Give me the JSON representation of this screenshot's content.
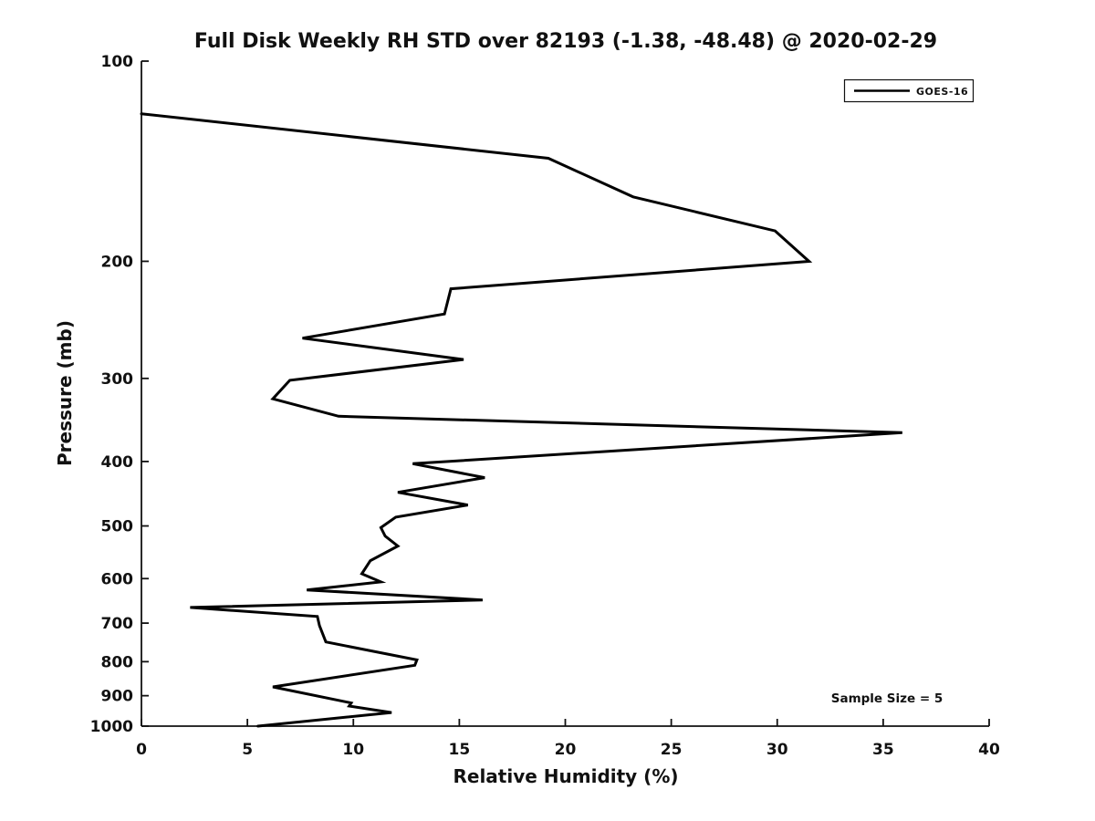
{
  "chart_data": {
    "type": "line",
    "title": "Full Disk Weekly RH STD over 82193 (-1.38, -48.48) @ 2020-02-29",
    "xlabel": "Relative Humidity (%)",
    "ylabel": "Pressure (mb)",
    "xlim": [
      0,
      40
    ],
    "ylim": [
      100,
      1000
    ],
    "yscale": "log",
    "y_axis_inverted": true,
    "grid": false,
    "xticks": [
      0,
      5,
      10,
      15,
      20,
      25,
      30,
      35,
      40
    ],
    "yticks": [
      100,
      200,
      300,
      400,
      500,
      600,
      700,
      800,
      900,
      1000
    ],
    "legend": {
      "position": "upper right",
      "entries": [
        {
          "label": "GOES-16",
          "color": "#000000"
        }
      ]
    },
    "annotation": "Sample Size = 5",
    "series": [
      {
        "name": "GOES-16",
        "color": "#000000",
        "x_rh_percent": [
          0.0,
          19.2,
          23.2,
          29.9,
          31.5,
          14.6,
          14.3,
          7.6,
          15.2,
          7.0,
          6.2,
          9.3,
          35.9,
          12.8,
          16.2,
          12.1,
          15.4,
          12.0,
          11.3,
          11.5,
          12.1,
          10.8,
          10.4,
          11.3,
          7.8,
          16.1,
          2.3,
          8.3,
          8.4,
          8.7,
          13.0,
          12.9,
          6.2,
          9.9,
          9.8,
          11.8,
          5.5
        ],
        "y_pressure_mb": [
          120,
          140,
          160,
          180,
          200,
          220,
          240,
          261,
          281,
          302,
          322,
          342,
          362,
          403,
          423,
          445,
          465,
          485,
          503,
          518,
          536,
          564,
          590,
          607,
          624,
          646,
          663,
          684,
          706,
          747,
          795,
          810,
          873,
          923,
          933,
          954,
          1000
        ]
      }
    ]
  }
}
